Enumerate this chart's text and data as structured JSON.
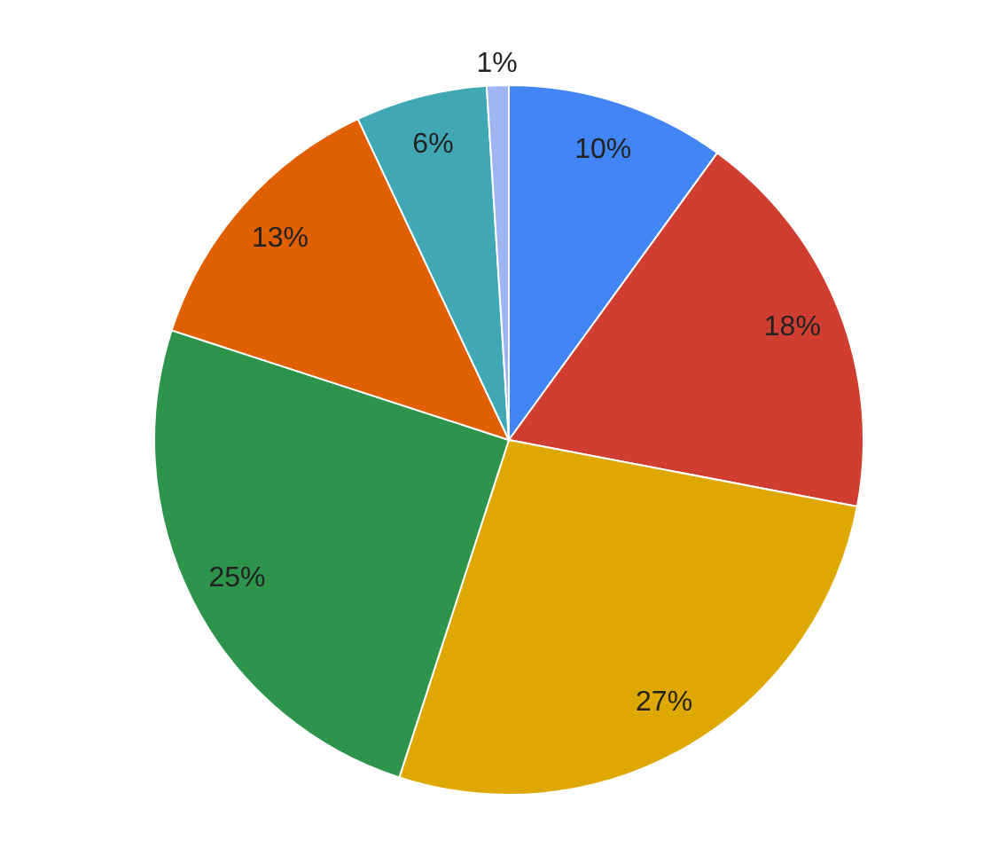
{
  "chart_data": {
    "type": "pie",
    "categories": [
      null,
      null,
      null,
      null,
      null,
      null,
      null
    ],
    "values": [
      10,
      18,
      27,
      25,
      13,
      6,
      1
    ],
    "value_labels": [
      "10%",
      "18%",
      "27%",
      "25%",
      "13%",
      "6%",
      "1%"
    ],
    "colors": [
      "#4285f4",
      "#cf3e31",
      "#dea800",
      "#2e944b",
      "#e05f00",
      "#3fa8b4",
      "#9fb4f2"
    ]
  }
}
